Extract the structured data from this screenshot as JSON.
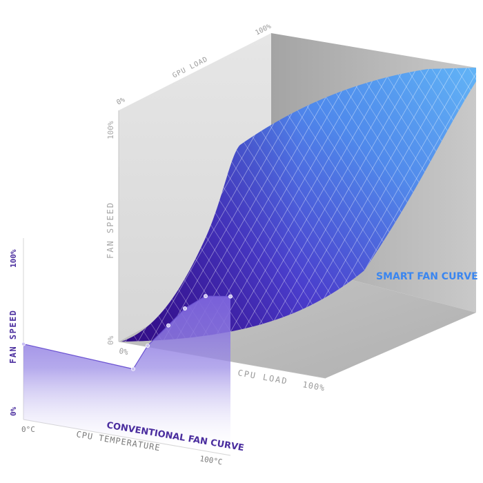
{
  "smart": {
    "title": "SMART FAN CURVE",
    "gpu_axis": {
      "label": "GPU LOAD",
      "min": "0%",
      "max": "100%"
    },
    "fan_axis": {
      "label": "FAN SPEED",
      "min": "0%",
      "max": "100%"
    },
    "cpu_axis": {
      "label": "CPU LOAD",
      "min": "0%",
      "max": "100%"
    }
  },
  "conventional": {
    "title": "CONVENTIONAL FAN CURVE",
    "fan_axis": {
      "label": "FAN SPEED",
      "min": "0%",
      "max": "100%"
    },
    "temp_axis": {
      "label": "CPU TEMPERATURE",
      "min": "0°C",
      "max": "100°C"
    },
    "curve_points": [
      {
        "temp_c": 0,
        "fan_pct": 38
      },
      {
        "temp_c": 53,
        "fan_pct": 35
      },
      {
        "temp_c": 60,
        "fan_pct": 48
      },
      {
        "temp_c": 70,
        "fan_pct": 60
      },
      {
        "temp_c": 78,
        "fan_pct": 70
      },
      {
        "temp_c": 88,
        "fan_pct": 78
      },
      {
        "temp_c": 100,
        "fan_pct": 80
      }
    ]
  },
  "colors": {
    "accent_blue": "#3a86f0",
    "accent_purple": "#4a2d9e",
    "surface_light": "#5aa6f4",
    "surface_dark": "#3f1296",
    "conventional_fill": "#8d7ae4",
    "wall_back": "#dcdcdc",
    "wall_floor": "#a9a9a9",
    "axis_text": "#9a9a9a"
  }
}
